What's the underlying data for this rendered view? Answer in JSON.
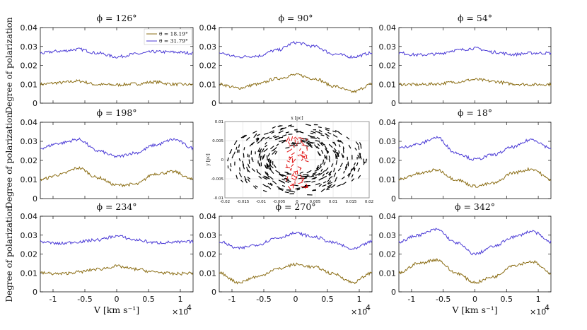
{
  "figure": {
    "colors": {
      "low_theta": "#8b6d14",
      "high_theta": "#4b3bd6",
      "inset_grey": "#000000",
      "inset_red": "#e01010"
    },
    "legend": {
      "entries": [
        "θ = 18.19°",
        "θ = 31.79°"
      ]
    }
  },
  "chart_data": [
    {
      "type": "line",
      "title": "ϕ = 126°",
      "xlabel": "",
      "ylabel": "Degree of polarization",
      "xlim": [
        -12000,
        12000
      ],
      "ylim": [
        0,
        0.04
      ],
      "x": [
        -12000,
        -9000,
        -6000,
        -3000,
        0,
        3000,
        6000,
        9000,
        12000
      ],
      "series": [
        {
          "name": "θ = 18.19°",
          "values": [
            0.01,
            0.0108,
            0.0117,
            0.0098,
            0.0097,
            0.0102,
            0.0112,
            0.01,
            0.0098
          ]
        },
        {
          "name": "θ = 31.79°",
          "values": [
            0.0265,
            0.0275,
            0.0285,
            0.0265,
            0.0245,
            0.026,
            0.0272,
            0.027,
            0.0265
          ]
        }
      ]
    },
    {
      "type": "line",
      "title": "ϕ = 90°",
      "xlabel": "",
      "ylabel": "",
      "xlim": [
        -12000,
        12000
      ],
      "ylim": [
        0,
        0.04
      ],
      "x": [
        -12000,
        -9000,
        -6000,
        -3000,
        0,
        3000,
        6000,
        9000,
        12000
      ],
      "series": [
        {
          "name": "θ = 18.19°",
          "values": [
            0.01,
            0.008,
            0.01,
            0.013,
            0.015,
            0.013,
            0.009,
            0.006,
            0.01
          ]
        },
        {
          "name": "θ = 31.79°",
          "values": [
            0.0265,
            0.0245,
            0.025,
            0.028,
            0.032,
            0.03,
            0.026,
            0.0245,
            0.0265
          ]
        }
      ]
    },
    {
      "type": "line",
      "title": "ϕ = 54°",
      "xlabel": "",
      "ylabel": "",
      "xlim": [
        -12000,
        12000
      ],
      "ylim": [
        0,
        0.04
      ],
      "x": [
        -12000,
        -9000,
        -6000,
        -3000,
        0,
        3000,
        6000,
        9000,
        12000
      ],
      "series": [
        {
          "name": "θ = 18.19°",
          "values": [
            0.01,
            0.0098,
            0.0102,
            0.0112,
            0.0125,
            0.0115,
            0.0102,
            0.0098,
            0.01
          ]
        },
        {
          "name": "θ = 31.79°",
          "values": [
            0.0265,
            0.0255,
            0.026,
            0.028,
            0.029,
            0.027,
            0.0258,
            0.0265,
            0.0265
          ]
        }
      ]
    },
    {
      "type": "line",
      "title": "ϕ = 198°",
      "xlabel": "",
      "ylabel": "Degree of polarization",
      "xlim": [
        -12000,
        12000
      ],
      "ylim": [
        0,
        0.04
      ],
      "x": [
        -12000,
        -9000,
        -6000,
        -3000,
        0,
        3000,
        6000,
        9000,
        12000
      ],
      "series": [
        {
          "name": "θ = 18.19°",
          "values": [
            0.01,
            0.0125,
            0.016,
            0.011,
            0.007,
            0.0075,
            0.013,
            0.014,
            0.01
          ]
        },
        {
          "name": "θ = 31.79°",
          "values": [
            0.0265,
            0.029,
            0.031,
            0.025,
            0.022,
            0.024,
            0.028,
            0.031,
            0.0265
          ]
        }
      ]
    },
    {
      "type": "scatter",
      "title": "",
      "xlabel": "x [pc]",
      "ylabel": "y [pc]",
      "xlim": [
        -0.02,
        0.02
      ],
      "ylim": [
        -0.01,
        0.01
      ],
      "xticks": [
        -0.02,
        -0.015,
        -0.01,
        -0.005,
        0,
        0.005,
        0.01,
        0.015,
        0.02
      ],
      "yticks": [
        -0.01,
        -0.005,
        0,
        0.005,
        0.01
      ],
      "series": [
        {
          "name": "polarization vectors",
          "values": []
        },
        {
          "name": "inner red vectors",
          "values": []
        }
      ]
    },
    {
      "type": "line",
      "title": "ϕ = 18°",
      "xlabel": "",
      "ylabel": "",
      "xlim": [
        -12000,
        12000
      ],
      "ylim": [
        0,
        0.04
      ],
      "x": [
        -12000,
        -9000,
        -6000,
        -3000,
        0,
        3000,
        6000,
        9000,
        12000
      ],
      "series": [
        {
          "name": "θ = 18.19°",
          "values": [
            0.01,
            0.013,
            0.015,
            0.01,
            0.0065,
            0.008,
            0.0135,
            0.0155,
            0.01
          ]
        },
        {
          "name": "θ = 31.79°",
          "values": [
            0.0265,
            0.0285,
            0.032,
            0.024,
            0.0205,
            0.023,
            0.027,
            0.031,
            0.0265
          ]
        }
      ]
    },
    {
      "type": "line",
      "title": "ϕ = 234°",
      "xlabel": "V [km s⁻¹]",
      "ylabel": "Degree of polarization",
      "xlim": [
        -12000,
        12000
      ],
      "ylim": [
        0,
        0.04
      ],
      "x": [
        -12000,
        -9000,
        -6000,
        -3000,
        0,
        3000,
        6000,
        9000,
        12000
      ],
      "series": [
        {
          "name": "θ = 18.19°",
          "values": [
            0.01,
            0.0095,
            0.0105,
            0.012,
            0.0135,
            0.012,
            0.0105,
            0.0095,
            0.01
          ]
        },
        {
          "name": "θ = 31.79°",
          "values": [
            0.0265,
            0.0255,
            0.0265,
            0.0275,
            0.0295,
            0.0275,
            0.026,
            0.0262,
            0.0265
          ]
        }
      ]
    },
    {
      "type": "line",
      "title": "ϕ = 270°",
      "xlabel": "",
      "ylabel": "",
      "xlim": [
        -12000,
        12000
      ],
      "ylim": [
        0,
        0.04
      ],
      "x": [
        -12000,
        -9000,
        -6000,
        -3000,
        0,
        3000,
        6000,
        9000,
        12000
      ],
      "series": [
        {
          "name": "θ = 18.19°",
          "values": [
            0.01,
            0.005,
            0.008,
            0.012,
            0.0145,
            0.013,
            0.0095,
            0.005,
            0.01
          ]
        },
        {
          "name": "θ = 31.79°",
          "values": [
            0.0265,
            0.023,
            0.025,
            0.0285,
            0.031,
            0.029,
            0.026,
            0.0225,
            0.0265
          ]
        }
      ]
    },
    {
      "type": "line",
      "title": "ϕ = 342°",
      "xlabel": "V [km s⁻¹]",
      "ylabel": "",
      "xlim": [
        -12000,
        12000
      ],
      "ylim": [
        0,
        0.04
      ],
      "x": [
        -12000,
        -9000,
        -6000,
        -3000,
        0,
        3000,
        6000,
        9000,
        12000
      ],
      "series": [
        {
          "name": "θ = 18.19°",
          "values": [
            0.01,
            0.015,
            0.017,
            0.01,
            0.005,
            0.008,
            0.014,
            0.016,
            0.01
          ]
        },
        {
          "name": "θ = 31.79°",
          "values": [
            0.0265,
            0.03,
            0.033,
            0.026,
            0.02,
            0.024,
            0.029,
            0.032,
            0.0265
          ]
        }
      ]
    }
  ],
  "axes": {
    "yticks": [
      "0",
      "0.01",
      "0.02",
      "0.03",
      "0.04"
    ],
    "xticks": [
      "-1",
      "-0.5",
      "0",
      "0.5",
      "1"
    ],
    "x_multiplier": "×10",
    "x_multiplier_exp": "4"
  }
}
